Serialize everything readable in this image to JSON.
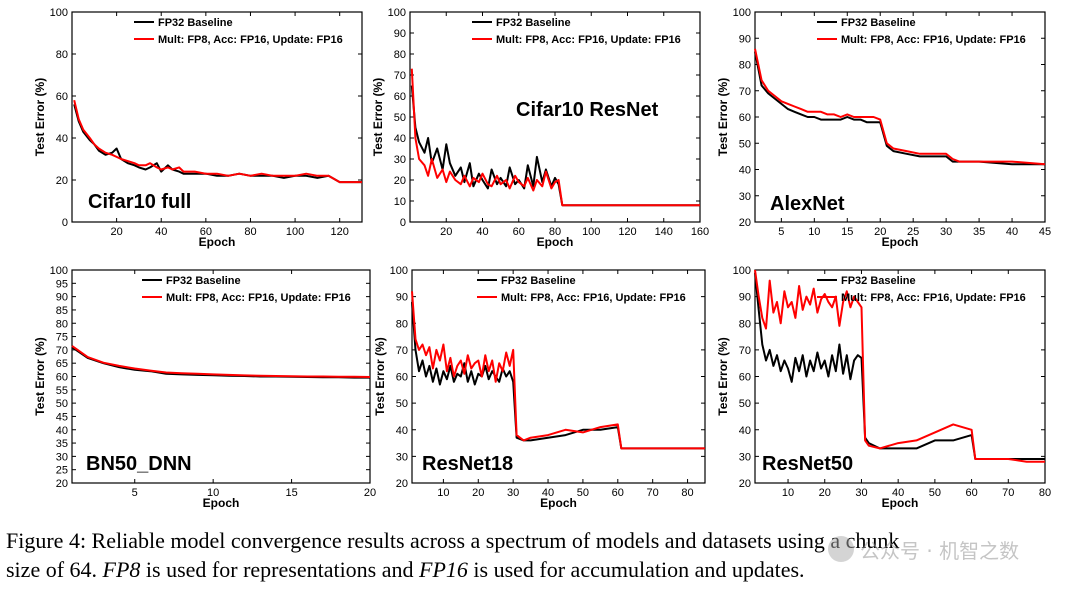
{
  "legend": {
    "baseline": "FP32 Baseline",
    "fp8": "Mult: FP8, Acc: FP16, Update: FP16"
  },
  "colors": {
    "baseline": "#000000",
    "fp8": "#ff0000"
  },
  "caption": {
    "line1_prefix": "Figure 4: Reliable model convergence results across a spectrum of models and datasets using a chunk",
    "line2_a": "size of 64.",
    "fp8_math": "FP8",
    "line2_b": "is used for representations and",
    "fp16_math": "FP16",
    "line2_c": "is used for accumulation and updates."
  },
  "watermark": {
    "text": "公众号 · 机智之数"
  },
  "chart_data": [
    {
      "type": "line",
      "title": "Cifar10 full",
      "xlabel": "Epoch",
      "ylabel": "Test Error (%)",
      "xlim": [
        0,
        130
      ],
      "ylim": [
        0,
        100
      ],
      "xticks": [
        20,
        40,
        60,
        80,
        100,
        120
      ],
      "yticks": [
        0,
        20,
        40,
        60,
        80,
        100
      ],
      "series": [
        {
          "name": "FP32 Baseline",
          "x": [
            1,
            3,
            5,
            8,
            10,
            12,
            15,
            18,
            20,
            22,
            25,
            28,
            30,
            33,
            35,
            38,
            40,
            43,
            45,
            48,
            50,
            55,
            60,
            65,
            70,
            75,
            80,
            85,
            90,
            95,
            100,
            105,
            110,
            115,
            120,
            125,
            130
          ],
          "y": [
            56,
            48,
            43,
            39,
            37,
            34,
            32,
            33,
            35,
            30,
            28,
            27,
            26,
            25,
            26,
            28,
            24,
            27,
            25,
            24,
            23,
            23,
            23,
            22,
            22,
            23,
            22,
            22,
            22,
            21,
            22,
            22,
            21,
            22,
            19,
            19,
            19
          ]
        },
        {
          "name": "Mult: FP8, Acc: FP16, Update: FP16",
          "x": [
            1,
            3,
            5,
            8,
            10,
            12,
            15,
            18,
            20,
            22,
            25,
            28,
            30,
            33,
            35,
            38,
            40,
            43,
            45,
            48,
            50,
            55,
            60,
            65,
            70,
            75,
            80,
            85,
            90,
            95,
            100,
            105,
            110,
            115,
            120,
            125,
            130
          ],
          "y": [
            58,
            49,
            44,
            40,
            37,
            35,
            33,
            32,
            31,
            30,
            29,
            28,
            27,
            27,
            28,
            26,
            25,
            26,
            25,
            26,
            24,
            24,
            23,
            23,
            22,
            23,
            22,
            23,
            22,
            22,
            22,
            23,
            22,
            22,
            19,
            19,
            19
          ]
        }
      ]
    },
    {
      "type": "line",
      "title": "Cifar10 ResNet",
      "xlabel": "Epoch",
      "ylabel": "Test Error (%)",
      "xlim": [
        0,
        160
      ],
      "ylim": [
        0,
        100
      ],
      "xticks": [
        20,
        40,
        60,
        80,
        100,
        120,
        140,
        160
      ],
      "yticks": [
        0,
        10,
        20,
        30,
        40,
        50,
        60,
        70,
        80,
        90,
        100
      ],
      "series": [
        {
          "name": "FP32 Baseline",
          "x": [
            1,
            3,
            5,
            8,
            10,
            12,
            15,
            18,
            20,
            22,
            25,
            28,
            30,
            33,
            35,
            38,
            40,
            43,
            45,
            48,
            50,
            53,
            55,
            58,
            60,
            63,
            65,
            68,
            70,
            73,
            75,
            78,
            80,
            82,
            84,
            90,
            100,
            110,
            120,
            130,
            140,
            150,
            160
          ],
          "y": [
            65,
            45,
            38,
            33,
            40,
            28,
            35,
            25,
            37,
            28,
            22,
            26,
            19,
            28,
            17,
            23,
            20,
            16,
            25,
            18,
            21,
            17,
            26,
            18,
            20,
            16,
            27,
            17,
            31,
            19,
            25,
            17,
            21,
            18,
            8,
            8,
            8,
            8,
            8,
            8,
            8,
            8,
            8
          ]
        },
        {
          "name": "Mult: FP8, Acc: FP16, Update: FP16",
          "x": [
            1,
            3,
            5,
            8,
            10,
            12,
            15,
            18,
            20,
            22,
            25,
            28,
            30,
            33,
            35,
            38,
            40,
            43,
            45,
            48,
            50,
            53,
            55,
            58,
            60,
            63,
            65,
            68,
            70,
            73,
            75,
            78,
            80,
            82,
            84,
            90,
            100,
            110,
            120,
            130,
            140,
            150,
            160
          ],
          "y": [
            73,
            40,
            30,
            27,
            22,
            30,
            21,
            25,
            19,
            24,
            20,
            18,
            22,
            17,
            21,
            19,
            23,
            18,
            17,
            22,
            18,
            20,
            16,
            22,
            19,
            17,
            21,
            15,
            20,
            17,
            24,
            16,
            19,
            20,
            8,
            8,
            8,
            8,
            8,
            8,
            8,
            8,
            8
          ]
        }
      ]
    },
    {
      "type": "line",
      "title": "AlexNet",
      "xlabel": "Epoch",
      "ylabel": "Test Error (%)",
      "xlim": [
        1,
        45
      ],
      "ylim": [
        20,
        100
      ],
      "xticks": [
        5,
        10,
        15,
        20,
        25,
        30,
        35,
        40,
        45
      ],
      "yticks": [
        20,
        30,
        40,
        50,
        60,
        70,
        80,
        90,
        100
      ],
      "series": [
        {
          "name": "FP32 Baseline",
          "x": [
            1,
            2,
            3,
            4,
            5,
            6,
            7,
            8,
            9,
            10,
            11,
            12,
            13,
            14,
            15,
            16,
            17,
            18,
            19,
            20,
            21,
            22,
            24,
            26,
            28,
            30,
            31,
            32,
            35,
            40,
            45
          ],
          "y": [
            85,
            72,
            69,
            67,
            65,
            63,
            62,
            61,
            60,
            60,
            59,
            59,
            59,
            59,
            60,
            59,
            59,
            58,
            58,
            58,
            49,
            47,
            46,
            45,
            45,
            45,
            43,
            43,
            43,
            42,
            42
          ]
        },
        {
          "name": "Mult: FP8, Acc: FP16, Update: FP16",
          "x": [
            1,
            2,
            3,
            4,
            5,
            6,
            7,
            8,
            9,
            10,
            11,
            12,
            13,
            14,
            15,
            16,
            17,
            18,
            19,
            20,
            21,
            22,
            24,
            26,
            28,
            30,
            31,
            32,
            35,
            40,
            45
          ],
          "y": [
            86,
            74,
            70,
            68,
            66,
            65,
            64,
            63,
            62,
            62,
            62,
            61,
            61,
            60,
            61,
            60,
            60,
            60,
            60,
            59,
            50,
            48,
            47,
            46,
            46,
            46,
            44,
            43,
            43,
            43,
            42
          ]
        }
      ]
    },
    {
      "type": "line",
      "title": "BN50_DNN",
      "xlabel": "Epoch",
      "ylabel": "Test Error (%)",
      "xlim": [
        1,
        20
      ],
      "ylim": [
        20,
        100
      ],
      "xticks": [
        5,
        10,
        15,
        20
      ],
      "yticks": [
        20,
        25,
        30,
        35,
        40,
        45,
        50,
        55,
        60,
        65,
        70,
        75,
        80,
        85,
        90,
        95,
        100
      ],
      "series": [
        {
          "name": "FP32 Baseline",
          "x": [
            1,
            2,
            3,
            4,
            5,
            6,
            7,
            8,
            9,
            10,
            11,
            12,
            13,
            14,
            15,
            16,
            17,
            18,
            19,
            20
          ],
          "y": [
            71,
            67,
            65,
            63.5,
            62.5,
            62,
            61,
            60.8,
            60.6,
            60.5,
            60.3,
            60.2,
            60,
            60,
            59.9,
            59.8,
            59.7,
            59.7,
            59.6,
            59.6
          ]
        },
        {
          "name": "Mult: FP8, Acc: FP16, Update: FP16",
          "x": [
            1,
            2,
            3,
            4,
            5,
            6,
            7,
            8,
            9,
            10,
            11,
            12,
            13,
            14,
            15,
            16,
            17,
            18,
            19,
            20
          ],
          "y": [
            71.5,
            67.3,
            65.2,
            64,
            63,
            62.2,
            61.5,
            61.2,
            61,
            60.8,
            60.6,
            60.4,
            60.3,
            60.2,
            60.1,
            60,
            60,
            59.9,
            59.9,
            59.8
          ]
        }
      ]
    },
    {
      "type": "line",
      "title": "ResNet18",
      "xlabel": "Epoch",
      "ylabel": "Test Error (%)",
      "xlim": [
        1,
        85
      ],
      "ylim": [
        20,
        100
      ],
      "xticks": [
        10,
        20,
        30,
        40,
        50,
        60,
        70,
        80
      ],
      "yticks": [
        20,
        30,
        40,
        50,
        60,
        70,
        80,
        90,
        100
      ],
      "series": [
        {
          "name": "FP32 Baseline",
          "x": [
            1,
            2,
            3,
            4,
            5,
            6,
            7,
            8,
            9,
            10,
            11,
            12,
            13,
            14,
            15,
            16,
            17,
            18,
            19,
            20,
            21,
            22,
            23,
            24,
            25,
            26,
            27,
            28,
            29,
            30,
            31,
            33,
            35,
            40,
            45,
            50,
            55,
            60,
            61,
            65,
            70,
            75,
            80,
            85
          ],
          "y": [
            88,
            70,
            62,
            66,
            60,
            64,
            58,
            63,
            57,
            62,
            59,
            64,
            58,
            61,
            60,
            65,
            58,
            62,
            57,
            61,
            60,
            64,
            59,
            62,
            60,
            58,
            63,
            60,
            62,
            58,
            37,
            36,
            36,
            37,
            38,
            40,
            40,
            41,
            33,
            33,
            33,
            33,
            33,
            33
          ]
        },
        {
          "name": "Mult: FP8, Acc: FP16, Update: FP16",
          "x": [
            1,
            2,
            3,
            4,
            5,
            6,
            7,
            8,
            9,
            10,
            11,
            12,
            13,
            14,
            15,
            16,
            17,
            18,
            19,
            20,
            21,
            22,
            23,
            24,
            25,
            26,
            27,
            28,
            29,
            30,
            31,
            33,
            35,
            40,
            45,
            50,
            55,
            60,
            61,
            65,
            70,
            75,
            80,
            85
          ],
          "y": [
            92,
            74,
            70,
            72,
            68,
            71,
            63,
            70,
            66,
            72,
            62,
            67,
            60,
            64,
            66,
            61,
            68,
            63,
            65,
            66,
            60,
            68,
            62,
            66,
            58,
            65,
            62,
            69,
            64,
            70,
            38,
            36,
            37,
            38,
            40,
            39,
            41,
            42,
            33,
            33,
            33,
            33,
            33,
            33
          ]
        }
      ]
    },
    {
      "type": "line",
      "title": "ResNet50",
      "xlabel": "Epoch",
      "ylabel": "Test Error (%)",
      "xlim": [
        1,
        80
      ],
      "ylim": [
        20,
        100
      ],
      "xticks": [
        10,
        20,
        30,
        40,
        50,
        60,
        70,
        80
      ],
      "yticks": [
        20,
        30,
        40,
        50,
        60,
        70,
        80,
        90,
        100
      ],
      "series": [
        {
          "name": "FP32 Baseline",
          "x": [
            1,
            2,
            3,
            4,
            5,
            6,
            7,
            8,
            9,
            10,
            11,
            12,
            13,
            14,
            15,
            16,
            17,
            18,
            19,
            20,
            21,
            22,
            23,
            24,
            25,
            26,
            27,
            28,
            29,
            30,
            31,
            32,
            35,
            40,
            45,
            50,
            55,
            60,
            61,
            65,
            70,
            75,
            80
          ],
          "y": [
            99,
            85,
            72,
            66,
            70,
            64,
            68,
            62,
            66,
            63,
            58,
            67,
            62,
            68,
            60,
            66,
            62,
            69,
            63,
            66,
            60,
            68,
            62,
            72,
            61,
            68,
            59,
            66,
            68,
            67,
            37,
            35,
            33,
            33,
            33,
            36,
            36,
            38,
            29,
            29,
            29,
            29,
            29
          ]
        },
        {
          "name": "Mult: FP8, Acc: FP16, Update: FP16",
          "x": [
            1,
            2,
            3,
            4,
            5,
            6,
            7,
            8,
            9,
            10,
            11,
            12,
            13,
            14,
            15,
            16,
            17,
            18,
            19,
            20,
            21,
            22,
            23,
            24,
            25,
            26,
            27,
            28,
            29,
            30,
            31,
            32,
            35,
            40,
            45,
            50,
            55,
            60,
            61,
            65,
            70,
            75,
            80
          ],
          "y": [
            100,
            90,
            82,
            78,
            96,
            84,
            88,
            80,
            92,
            86,
            88,
            82,
            94,
            85,
            90,
            87,
            93,
            84,
            89,
            91,
            88,
            86,
            90,
            79,
            88,
            92,
            86,
            90,
            88,
            86,
            36,
            34,
            33,
            35,
            36,
            39,
            42,
            40,
            29,
            29,
            29,
            28,
            28
          ]
        }
      ]
    }
  ]
}
